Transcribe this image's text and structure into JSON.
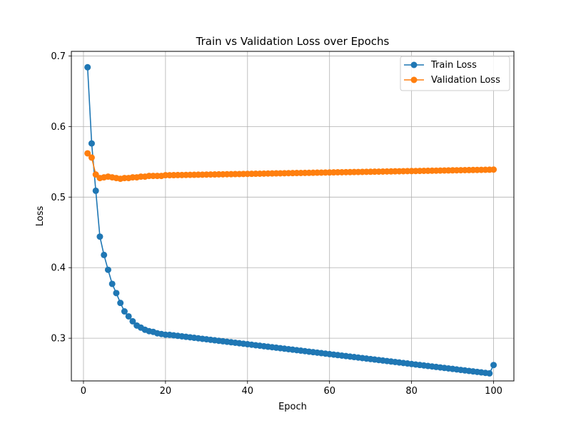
{
  "chart_data": {
    "type": "line",
    "title": "Train vs Validation Loss over Epochs",
    "xlabel": "Epoch",
    "ylabel": "Loss",
    "xlim": [
      -2.95,
      104.95
    ],
    "ylim": [
      0.2395,
      0.7065
    ],
    "xticks": [
      0,
      20,
      40,
      60,
      80,
      100
    ],
    "yticks": [
      0.3,
      0.4,
      0.5,
      0.6,
      0.7
    ],
    "grid": true,
    "legend_position": "top-right",
    "x": [
      1,
      2,
      3,
      4,
      5,
      6,
      7,
      8,
      9,
      10,
      11,
      12,
      13,
      14,
      15,
      16,
      17,
      18,
      19,
      20,
      21,
      22,
      23,
      24,
      25,
      26,
      27,
      28,
      29,
      30,
      31,
      32,
      33,
      34,
      35,
      36,
      37,
      38,
      39,
      40,
      41,
      42,
      43,
      44,
      45,
      46,
      47,
      48,
      49,
      50,
      51,
      52,
      53,
      54,
      55,
      56,
      57,
      58,
      59,
      60,
      61,
      62,
      63,
      64,
      65,
      66,
      67,
      68,
      69,
      70,
      71,
      72,
      73,
      74,
      75,
      76,
      77,
      78,
      79,
      80,
      81,
      82,
      83,
      84,
      85,
      86,
      87,
      88,
      89,
      90,
      91,
      92,
      93,
      94,
      95,
      96,
      97,
      98,
      99,
      100
    ],
    "series": [
      {
        "name": "Train Loss",
        "color": "#1f77b4",
        "values": [
          0.684,
          0.576,
          0.509,
          0.444,
          0.418,
          0.397,
          0.377,
          0.364,
          0.35,
          0.338,
          0.331,
          0.324,
          0.318,
          0.315,
          0.312,
          0.31,
          0.309,
          0.307,
          0.306,
          0.305,
          0.3048,
          0.3041,
          0.3034,
          0.3027,
          0.302,
          0.3013,
          0.3006,
          0.2999,
          0.2992,
          0.2985,
          0.2978,
          0.2971,
          0.2964,
          0.2957,
          0.295,
          0.2943,
          0.2936,
          0.2929,
          0.2922,
          0.2915,
          0.2908,
          0.2901,
          0.2894,
          0.2887,
          0.288,
          0.2873,
          0.2866,
          0.2859,
          0.2852,
          0.2845,
          0.2838,
          0.2831,
          0.2824,
          0.2817,
          0.281,
          0.2803,
          0.2796,
          0.2789,
          0.2782,
          0.2775,
          0.2768,
          0.2761,
          0.2754,
          0.2747,
          0.274,
          0.2733,
          0.2726,
          0.2719,
          0.2712,
          0.2705,
          0.2698,
          0.2691,
          0.2684,
          0.2677,
          0.267,
          0.2663,
          0.2656,
          0.2649,
          0.2642,
          0.2635,
          0.2628,
          0.2621,
          0.2614,
          0.2607,
          0.26,
          0.2593,
          0.2586,
          0.2579,
          0.2572,
          0.2565,
          0.2558,
          0.2551,
          0.2544,
          0.2537,
          0.253,
          0.2523,
          0.2516,
          0.2509,
          0.2502,
          0.262
        ]
      },
      {
        "name": "Validation Loss",
        "color": "#ff7f0e",
        "values": [
          0.562,
          0.556,
          0.532,
          0.527,
          0.528,
          0.529,
          0.528,
          0.527,
          0.526,
          0.527,
          0.527,
          0.528,
          0.528,
          0.529,
          0.529,
          0.53,
          0.53,
          0.53,
          0.53,
          0.531,
          0.531,
          0.5311,
          0.5312,
          0.5313,
          0.5314,
          0.5315,
          0.5316,
          0.5317,
          0.5318,
          0.5319,
          0.532,
          0.5321,
          0.5322,
          0.5323,
          0.5324,
          0.5325,
          0.5326,
          0.5327,
          0.5328,
          0.5329,
          0.533,
          0.5331,
          0.5332,
          0.5333,
          0.5334,
          0.5335,
          0.5336,
          0.5337,
          0.5338,
          0.5339,
          0.534,
          0.5341,
          0.5342,
          0.5343,
          0.5344,
          0.5345,
          0.5346,
          0.5347,
          0.5348,
          0.5349,
          0.535,
          0.5351,
          0.5352,
          0.5353,
          0.5354,
          0.5355,
          0.5356,
          0.5357,
          0.5358,
          0.5359,
          0.536,
          0.5361,
          0.5362,
          0.5363,
          0.5364,
          0.5365,
          0.5366,
          0.5367,
          0.5368,
          0.5369,
          0.537,
          0.5371,
          0.5372,
          0.5373,
          0.5374,
          0.5375,
          0.5376,
          0.5377,
          0.5378,
          0.5379,
          0.538,
          0.5381,
          0.5382,
          0.5383,
          0.5384,
          0.5385,
          0.5386,
          0.5387,
          0.5388,
          0.539
        ]
      }
    ]
  }
}
